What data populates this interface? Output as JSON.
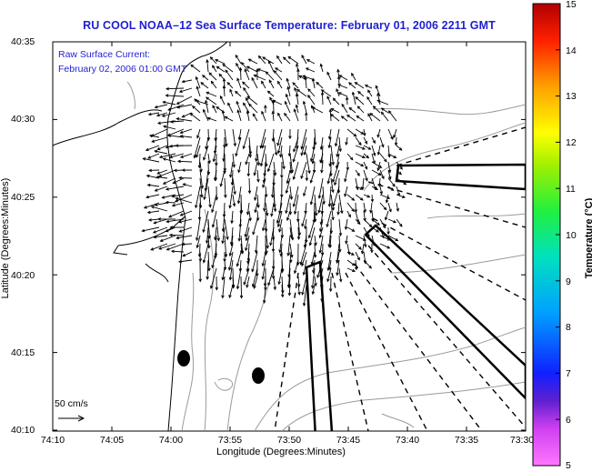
{
  "title": "RU COOL  NOAA–12  Sea Surface Temperature:  February 01, 2006 2211 GMT",
  "current_note": {
    "line1": "Raw Surface Current:",
    "line2": "February 02, 2006 01:00 GMT"
  },
  "axes": {
    "x_label": "Longitude (Degrees:Minutes)",
    "y_label": "Latitude (Degrees:Minutes)",
    "x_ticks": [
      "74:10",
      "74:05",
      "74:00",
      "73:55",
      "73:50",
      "73:45",
      "73:40",
      "73:35",
      "73:30"
    ],
    "y_ticks": [
      "40:35",
      "40:30",
      "40:25",
      "40:20",
      "40:15",
      "40:10"
    ]
  },
  "colorbar": {
    "label": "Temperature (°C)",
    "ticks": [
      "15",
      "14",
      "13",
      "12",
      "11",
      "10",
      "9",
      "8",
      "7",
      "6",
      "5"
    ],
    "range": [
      5,
      15
    ]
  },
  "scale_arrow": {
    "label": "50 cm/s"
  },
  "colors": {
    "text_blue": "#1f1fd0",
    "land": "#000000",
    "bathymetry": "#9a9a9a",
    "arrows": "#000000"
  },
  "legend_icons": [
    "scale-arrow-icon",
    "buoy-marker-icon"
  ]
}
